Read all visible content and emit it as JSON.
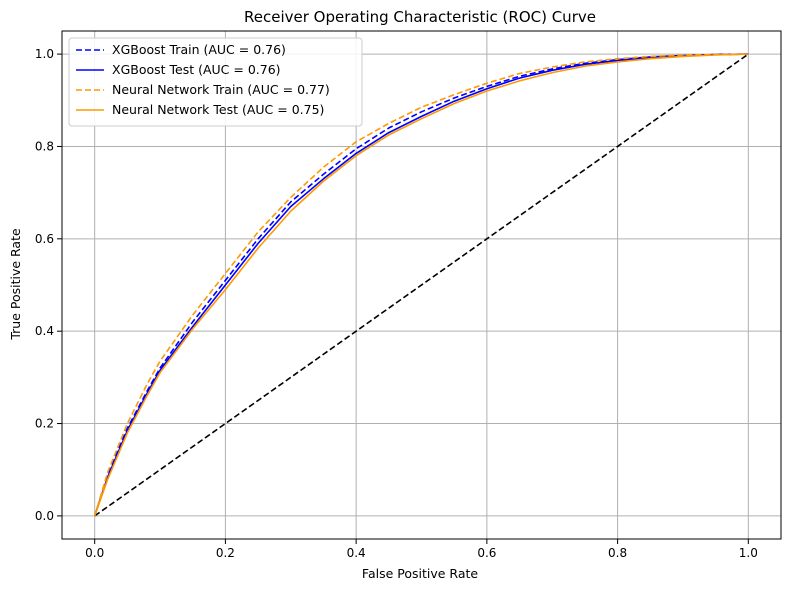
{
  "chart_data": {
    "type": "line",
    "title": "Receiver Operating Characteristic (ROC) Curve",
    "xlabel": "False Positive Rate",
    "ylabel": "True Positive Rate",
    "xlim": [
      -0.05,
      1.05
    ],
    "ylim": [
      -0.05,
      1.05
    ],
    "xticks": [
      0.0,
      0.2,
      0.4,
      0.6,
      0.8,
      1.0
    ],
    "yticks": [
      0.0,
      0.2,
      0.4,
      0.6,
      0.8,
      1.0
    ],
    "xtick_labels": [
      "0.0",
      "0.2",
      "0.4",
      "0.6",
      "0.8",
      "1.0"
    ],
    "ytick_labels": [
      "0.0",
      "0.2",
      "0.4",
      "0.6",
      "0.8",
      "1.0"
    ],
    "grid": true,
    "legend_position": "top-left",
    "series": [
      {
        "name": "XGBoost Train (AUC = 0.76)",
        "color": "#0000ff",
        "style": "dashed",
        "x": [
          0,
          0.02,
          0.05,
          0.08,
          0.1,
          0.15,
          0.2,
          0.25,
          0.3,
          0.35,
          0.4,
          0.45,
          0.5,
          0.55,
          0.6,
          0.65,
          0.7,
          0.75,
          0.8,
          0.85,
          0.9,
          0.95,
          1.0
        ],
        "y": [
          0,
          0.09,
          0.19,
          0.27,
          0.32,
          0.42,
          0.51,
          0.6,
          0.68,
          0.74,
          0.795,
          0.84,
          0.875,
          0.905,
          0.93,
          0.952,
          0.968,
          0.98,
          0.988,
          0.994,
          0.997,
          0.999,
          1.0
        ]
      },
      {
        "name": "XGBoost Test (AUC = 0.76)",
        "color": "#0000ff",
        "style": "solid",
        "x": [
          0,
          0.02,
          0.05,
          0.08,
          0.1,
          0.15,
          0.2,
          0.25,
          0.3,
          0.35,
          0.4,
          0.45,
          0.5,
          0.55,
          0.6,
          0.65,
          0.7,
          0.75,
          0.8,
          0.85,
          0.9,
          0.95,
          1.0
        ],
        "y": [
          0,
          0.085,
          0.185,
          0.265,
          0.315,
          0.41,
          0.5,
          0.59,
          0.67,
          0.73,
          0.785,
          0.83,
          0.865,
          0.898,
          0.925,
          0.948,
          0.965,
          0.978,
          0.986,
          0.992,
          0.996,
          0.999,
          1.0
        ]
      },
      {
        "name": "Neural Network Train (AUC = 0.77)",
        "color": "#ff9900",
        "style": "dashed",
        "x": [
          0,
          0.02,
          0.05,
          0.08,
          0.1,
          0.15,
          0.2,
          0.25,
          0.3,
          0.35,
          0.4,
          0.45,
          0.5,
          0.55,
          0.6,
          0.65,
          0.7,
          0.75,
          0.8,
          0.85,
          0.9,
          0.95,
          1.0
        ],
        "y": [
          0,
          0.095,
          0.2,
          0.285,
          0.335,
          0.435,
          0.525,
          0.615,
          0.69,
          0.755,
          0.81,
          0.85,
          0.885,
          0.912,
          0.937,
          0.958,
          0.972,
          0.983,
          0.99,
          0.995,
          0.998,
          0.999,
          1.0
        ]
      },
      {
        "name": "Neural Network Test (AUC = 0.75)",
        "color": "#ff9900",
        "style": "solid",
        "x": [
          0,
          0.02,
          0.05,
          0.08,
          0.1,
          0.15,
          0.2,
          0.25,
          0.3,
          0.35,
          0.4,
          0.45,
          0.5,
          0.55,
          0.6,
          0.65,
          0.7,
          0.75,
          0.8,
          0.85,
          0.9,
          0.95,
          1.0
        ],
        "y": [
          0,
          0.08,
          0.18,
          0.26,
          0.31,
          0.405,
          0.49,
          0.58,
          0.66,
          0.725,
          0.78,
          0.825,
          0.86,
          0.893,
          0.92,
          0.942,
          0.96,
          0.974,
          0.983,
          0.99,
          0.995,
          0.998,
          1.0
        ]
      }
    ],
    "reference_line": {
      "color": "#000000",
      "style": "dashed",
      "x": [
        0,
        1
      ],
      "y": [
        0,
        1
      ]
    }
  }
}
